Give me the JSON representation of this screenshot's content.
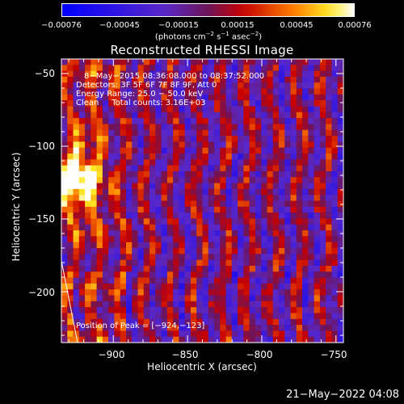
{
  "chart_data": {
    "type": "heatmap",
    "title": "Reconstructed RHESSI Image",
    "xlabel": "Heliocentric X (arcsec)",
    "ylabel": "Heliocentric Y (arcsec)",
    "xlim": [
      -935,
      -745
    ],
    "ylim": [
      -235,
      -40
    ],
    "xticks": [
      -900,
      -850,
      -800,
      -750
    ],
    "xtick_labels": [
      "−900",
      "−850",
      "−800",
      "−750"
    ],
    "yticks": [
      -50,
      -100,
      -150,
      -200
    ],
    "ytick_labels": [
      "−50",
      "−100",
      "−150",
      "−200"
    ],
    "colorbar": {
      "min": -0.00076,
      "max": 0.00076,
      "tick_labels": [
        "−0.00076",
        "−0.00045",
        "−0.00015",
        "0.00015",
        "0.00045",
        "0.00076"
      ],
      "units_prefix": "(photons cm",
      "units_exp1": "−2",
      "units_mid": " s",
      "units_exp2": "−1",
      "units_mid2": " asec",
      "units_exp3": "−2",
      "units_suffix": ")"
    },
    "peak_position": [
      -924,
      -123
    ],
    "peak_value": 0.00076,
    "annotations": {
      "time_range": "8−May−2015 08:36:08.000 to 08:37:52.000",
      "detectors": "Detectors: 3F 5F 6F 7F 8F 9F, Att 0",
      "energy_range": "Energy Range: 25.0 − 50.0 keV",
      "method": "Clean     Total counts: 3.16E+03",
      "peak_label": "Position of Peak = [−924,−123]"
    }
  },
  "timestamp": "21−May−2022 04:08"
}
